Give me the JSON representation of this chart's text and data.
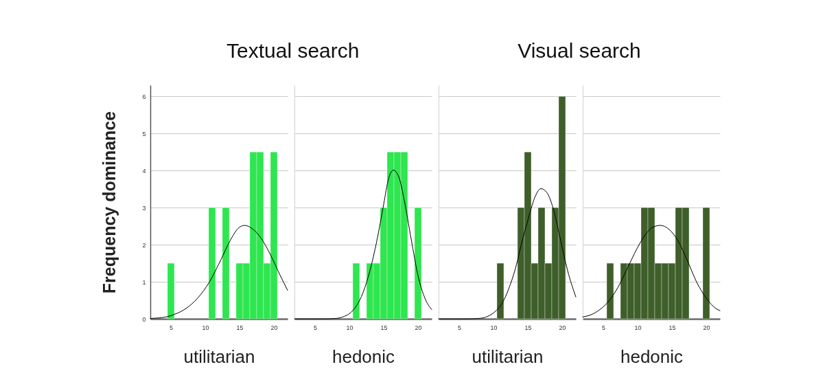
{
  "chart_data": [
    {
      "type": "histogram",
      "title": "Textual search",
      "xlabel": "utilitarian",
      "ylabel": "Frequency dominance",
      "bins": [
        4.5,
        5.5,
        6.5,
        7.5,
        8.5,
        9.5,
        10.5,
        11.5,
        12.5,
        13.5,
        14.5,
        15.5,
        16.5,
        17.5,
        18.5,
        19.5,
        20.5
      ],
      "series": [
        {
          "color": "#2ee64f",
          "values": [
            1.5,
            0,
            0,
            0,
            0,
            0,
            3,
            0,
            3,
            0,
            1.5,
            1.5,
            4.5,
            4.5,
            1.5,
            4.5
          ]
        },
        {
          "type": "line",
          "color": "#000000",
          "x": [
            2,
            4.5,
            5.5,
            7.2,
            8.9,
            10.6,
            12.3,
            13.6,
            14.8,
            15.7,
            16.8,
            18.2,
            19.5,
            20.9,
            22
          ],
          "values": [
            0.01,
            0.06,
            0.12,
            0.28,
            0.56,
            0.99,
            1.6,
            2.1,
            2.44,
            2.52,
            2.44,
            2.16,
            1.73,
            1.18,
            0.77
          ]
        }
      ],
      "xlim": [
        2,
        22
      ],
      "xticks": [
        5,
        10,
        15,
        20
      ],
      "ylim": [
        0,
        6.3
      ],
      "yticks": [
        0,
        1,
        2,
        3,
        4,
        5,
        6
      ],
      "grid": "y"
    },
    {
      "type": "histogram",
      "xlabel": "hedonic",
      "bins": [
        4.5,
        5.5,
        6.5,
        7.5,
        8.5,
        9.5,
        10.5,
        11.5,
        12.5,
        13.5,
        14.5,
        15.5,
        16.5,
        17.5,
        18.5,
        19.5,
        20.5
      ],
      "series": [
        {
          "color": "#2ee64f",
          "values": [
            0,
            0,
            0,
            0,
            0,
            0,
            1.5,
            0,
            1.5,
            1.5,
            3,
            4.5,
            4.5,
            4.5,
            0,
            3
          ]
        },
        {
          "type": "line",
          "color": "#000000",
          "x": [
            2,
            6.3,
            8,
            9,
            10,
            11,
            12,
            13,
            14,
            15,
            15.7,
            16.4,
            17.2,
            18,
            19,
            20,
            21,
            22
          ],
          "values": [
            0,
            0,
            0.01,
            0.05,
            0.14,
            0.34,
            0.71,
            1.3,
            2.1,
            3.09,
            3.77,
            4.01,
            3.83,
            3.2,
            2.16,
            1.17,
            0.56,
            0.25
          ]
        }
      ],
      "xlim": [
        2,
        22
      ],
      "xticks": [
        5,
        10,
        15,
        20
      ],
      "ylim": [
        0,
        6.3
      ],
      "yticks": [
        0,
        1,
        2,
        3,
        4,
        5,
        6
      ],
      "grid": "y",
      "tick_labels": "x"
    },
    {
      "type": "histogram",
      "title": "Visual search",
      "xlabel": "utilitarian",
      "bins": [
        4.5,
        5.5,
        6.5,
        7.5,
        8.5,
        9.5,
        10.5,
        11.5,
        12.5,
        13.5,
        14.5,
        15.5,
        16.5,
        17.5,
        18.5,
        19.5,
        20.5
      ],
      "series": [
        {
          "color": "#3f5f2a",
          "values": [
            0,
            0,
            0,
            0,
            0,
            0,
            1.5,
            0,
            0,
            3,
            4.5,
            1.5,
            3,
            1.5,
            3,
            6
          ]
        },
        {
          "type": "line",
          "color": "#000000",
          "x": [
            2,
            6.1,
            7.8,
            9.2,
            10.2,
            11.2,
            12.2,
            13.2,
            14.1,
            15.1,
            16.1,
            16.9,
            17.8,
            18.8,
            19.8,
            20.8,
            22
          ],
          "values": [
            0,
            0,
            0.01,
            0.07,
            0.19,
            0.4,
            0.8,
            1.36,
            2.04,
            2.72,
            3.31,
            3.51,
            3.4,
            2.91,
            2.1,
            1.3,
            0.59
          ]
        }
      ],
      "xlim": [
        2,
        22
      ],
      "xticks": [
        5,
        10,
        15,
        20
      ],
      "ylim": [
        0,
        6.3
      ],
      "yticks": [
        0,
        1,
        2,
        3,
        4,
        5,
        6
      ],
      "grid": "y",
      "tick_labels": "x"
    },
    {
      "type": "histogram",
      "xlabel": "hedonic",
      "bins": [
        4.5,
        5.5,
        6.5,
        7.5,
        8.5,
        9.5,
        10.5,
        11.5,
        12.5,
        13.5,
        14.5,
        15.5,
        16.5,
        17.5,
        18.5,
        19.5,
        20.5
      ],
      "series": [
        {
          "color": "#3f5f2a",
          "values": [
            0,
            1.5,
            0,
            1.5,
            1.5,
            1.5,
            3,
            3,
            1.5,
            1.5,
            1.5,
            3,
            3,
            0,
            0,
            3
          ]
        },
        {
          "type": "line",
          "color": "#000000",
          "x": [
            2,
            3.2,
            4.5,
            5.85,
            7.2,
            8.5,
            9.9,
            11.2,
            12.2,
            13.3,
            14.6,
            15.9,
            17.3,
            18.6,
            20,
            21.4,
            22
          ],
          "values": [
            0.05,
            0.11,
            0.25,
            0.49,
            0.87,
            1.36,
            1.89,
            2.29,
            2.47,
            2.52,
            2.41,
            2.1,
            1.55,
            0.99,
            0.56,
            0.28,
            0.22
          ]
        }
      ],
      "xlim": [
        2,
        22
      ],
      "xticks": [
        5,
        10,
        15,
        20
      ],
      "ylim": [
        0,
        6.3
      ],
      "yticks": [
        0,
        1,
        2,
        3,
        4,
        5,
        6
      ],
      "grid": "y",
      "tick_labels": "x"
    }
  ]
}
